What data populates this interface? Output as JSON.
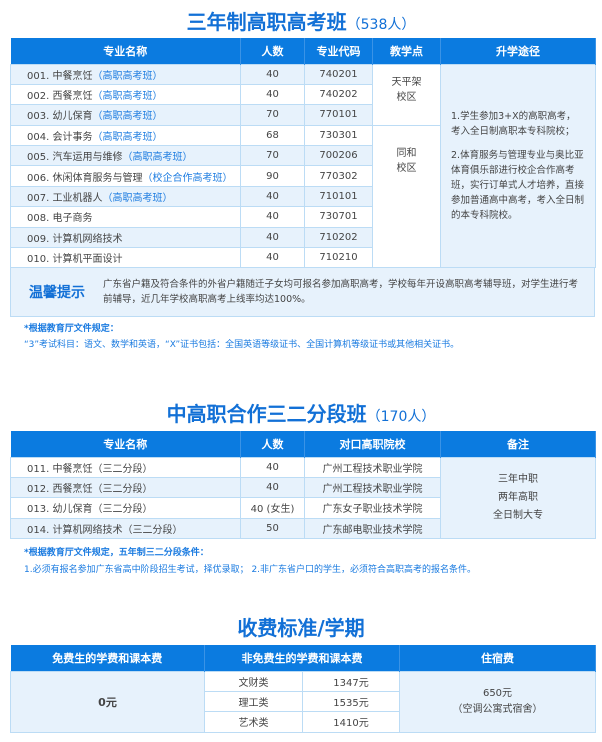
{
  "section1": {
    "title": "三年制高职高考班",
    "count": "（538人）",
    "headers": [
      "专业名称",
      "人数",
      "专业代码",
      "教学点",
      "升学途径"
    ],
    "rows": [
      {
        "name": "001. 中餐烹饪",
        "tag": "（高职高考班）",
        "count": "40",
        "code": "740201"
      },
      {
        "name": "002. 西餐烹饪",
        "tag": "（高职高考班）",
        "count": "40",
        "code": "740202"
      },
      {
        "name": "003. 幼儿保育",
        "tag": "（高职高考班）",
        "count": "70",
        "code": "770101"
      },
      {
        "name": "004. 会计事务",
        "tag": "（高职高考班）",
        "count": "68",
        "code": "730301"
      },
      {
        "name": "005. 汽车运用与维修",
        "tag": "（高职高考班）",
        "count": "70",
        "code": "700206"
      },
      {
        "name": "006. 休闲体育服务与管理",
        "tag": "（校企合作高考班）",
        "count": "90",
        "code": "770302"
      },
      {
        "name": "007. 工业机器人",
        "tag": "（高职高考班）",
        "count": "40",
        "code": "710101"
      },
      {
        "name": "008. 电子商务",
        "tag": "",
        "count": "40",
        "code": "730701"
      },
      {
        "name": "009. 计算机网络技术",
        "tag": "",
        "count": "40",
        "code": "710202"
      },
      {
        "name": "010. 计算机平面设计",
        "tag": "",
        "count": "40",
        "code": "710210"
      }
    ],
    "campus": [
      "天平架\n校区",
      "同和\n校区"
    ],
    "path": [
      "1.学生参加3+X的高职高考，考入全日制高职本专科院校；",
      "2.体育服务与管理专业与奥比亚体育俱乐部进行校企合作高考班，实行订单式人才培养，直接参加普通高中高考，考入全日制的本专科院校。"
    ],
    "tips_label": "温馨提示",
    "tips_text": "广东省户籍及符合条件的外省户籍随迁子女均可报名参加高职高考，学校每年开设高职高考辅导班，对学生进行考前辅导，近几年学校高职高考上线率均达100%。",
    "note_title": "*根据教育厅文件规定：",
    "note_text": "“3”考试科目：语文、数学和英语，“X”证书包括：全国英语等级证书、全国计算机等级证书或其他相关证书。"
  },
  "section2": {
    "title": "中高职合作三二分段班",
    "count": "（170人）",
    "headers": [
      "专业名称",
      "人数",
      "对口高职院校",
      "备注"
    ],
    "rows": [
      {
        "name": "011. 中餐烹饪（三二分段）",
        "count": "40",
        "school": "广州工程技术职业学院"
      },
      {
        "name": "012. 西餐烹饪（三二分段）",
        "count": "40",
        "school": "广州工程技术职业学院"
      },
      {
        "name": "013. 幼儿保育（三二分段）",
        "count": "40 (女生)",
        "school": "广东女子职业技术学院"
      },
      {
        "name": "014. 计算机网络技术（三二分段）",
        "count": "50",
        "school": "广东邮电职业技术学院"
      }
    ],
    "remark": [
      "三年中职",
      "两年高职",
      "全日制大专"
    ],
    "note_title": "*根据教育厅文件规定，五年制三二分段条件：",
    "note_text": "1.必须有报名参加广东省高中阶段招生考试，择优录取；  2.非广东省户口的学生，必须符合高职高考的报名条件。"
  },
  "section3": {
    "title": "收费标准/学期",
    "headers": [
      "免费生的学费和课本费",
      "非免费生的学费和课本费",
      "住宿费"
    ],
    "free": "0元",
    "fees": [
      {
        "type": "文财类",
        "price": "1347元"
      },
      {
        "type": "理工类",
        "price": "1535元"
      },
      {
        "type": "艺术类",
        "price": "1410元"
      }
    ],
    "dorm": "650元",
    "dorm_note": "（空调公寓式宿舍）"
  },
  "colors": {
    "accent": "#0b7be0",
    "row_alt": "#e7f2fc"
  }
}
